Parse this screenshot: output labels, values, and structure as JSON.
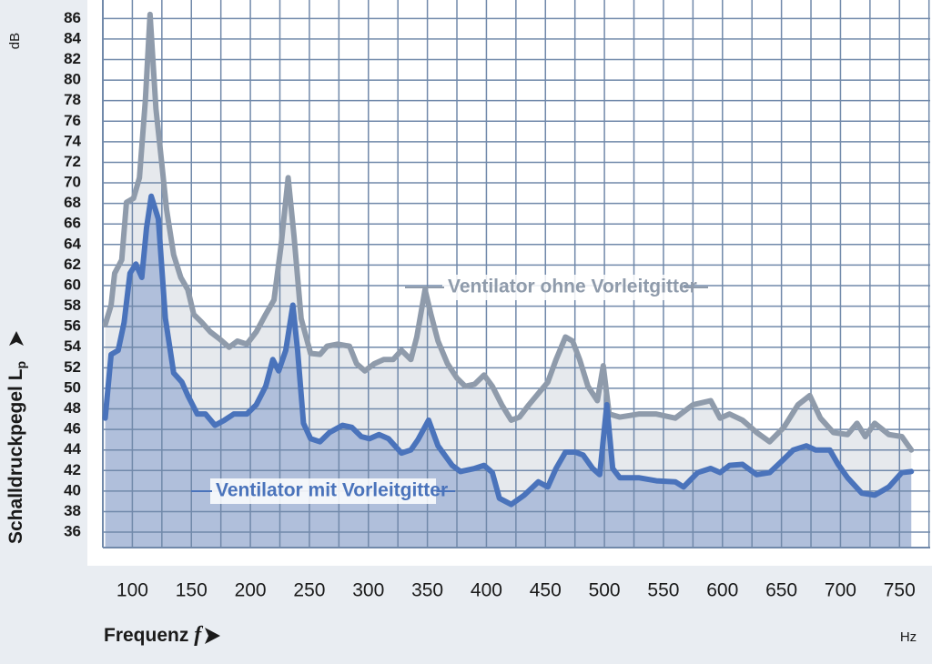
{
  "chart_data": {
    "type": "line",
    "ylabel": {
      "text": "Schalldruckpegel L",
      "subscript": "p"
    },
    "yunit": "dB",
    "xlabel": {
      "text": "Frequenz",
      "symbol": "f"
    },
    "xunit": "Hz",
    "xlim": [
      75,
      776
    ],
    "ylim": [
      34.5,
      87.8
    ],
    "xticks": [
      100,
      150,
      200,
      250,
      300,
      350,
      400,
      450,
      500,
      550,
      600,
      650,
      700,
      750
    ],
    "xminorticks": [
      125,
      175,
      225,
      275,
      325,
      375,
      425,
      475,
      525,
      575,
      625,
      675,
      725,
      775
    ],
    "yticks": [
      36,
      38,
      40,
      42,
      44,
      46,
      48,
      50,
      52,
      54,
      56,
      58,
      60,
      62,
      64,
      66,
      68,
      70,
      72,
      74,
      76,
      78,
      80,
      82,
      84,
      86
    ],
    "grid": true,
    "series": [
      {
        "name": "Ventilator ohne Vorleitgitter",
        "color": "#8f9bab",
        "x": [
          77,
          82,
          85,
          91,
          95,
          101,
          106,
          111,
          115,
          120,
          125,
          129,
          135,
          141,
          147,
          152,
          159,
          166,
          174,
          182,
          189,
          197,
          205,
          213,
          220,
          226,
          232,
          237,
          243,
          251,
          259,
          265,
          274,
          284,
          290,
          297,
          305,
          313,
          321,
          328,
          336,
          341,
          348,
          353,
          359,
          367,
          375,
          382,
          390,
          398,
          405,
          413,
          421,
          428,
          436,
          444,
          452,
          459,
          467,
          473,
          479,
          486,
          494,
          499,
          504,
          513,
          529,
          544,
          560,
          575,
          590,
          598,
          606,
          617,
          629,
          640,
          652,
          664,
          674,
          683,
          694,
          706,
          714,
          721,
          729,
          741,
          752,
          760
        ],
        "values": [
          56.2,
          58.1,
          61.2,
          62.5,
          68.1,
          68.5,
          70.5,
          78.0,
          86.4,
          77.2,
          71.8,
          67.4,
          63.0,
          60.8,
          59.6,
          57.2,
          56.4,
          55.5,
          54.8,
          54.0,
          54.6,
          54.3,
          55.5,
          57.2,
          58.6,
          63.9,
          70.5,
          64.8,
          56.8,
          53.4,
          53.3,
          54.1,
          54.3,
          54.1,
          52.4,
          51.7,
          52.4,
          52.8,
          52.8,
          53.7,
          52.8,
          55.0,
          59.6,
          57.2,
          54.6,
          52.4,
          51.0,
          50.2,
          50.4,
          51.3,
          50.2,
          48.4,
          46.9,
          47.2,
          48.4,
          49.5,
          50.6,
          52.8,
          55.0,
          54.6,
          52.8,
          50.2,
          48.8,
          52.2,
          47.5,
          47.2,
          47.5,
          47.5,
          47.1,
          48.4,
          48.8,
          47.1,
          47.5,
          46.9,
          45.7,
          44.8,
          46.2,
          48.4,
          49.3,
          47.1,
          45.7,
          45.5,
          46.6,
          45.3,
          46.6,
          45.5,
          45.3,
          44.0
        ]
      },
      {
        "name": "Ventilator mit Vorleitgitter",
        "color": "#4a73bb",
        "x": [
          77,
          82,
          88,
          93,
          98,
          103,
          108,
          112,
          116,
          122,
          128,
          135,
          142,
          147,
          155,
          162,
          170,
          178,
          186,
          197,
          205,
          213,
          219,
          224,
          230,
          236,
          240,
          245,
          251,
          259,
          267,
          278,
          286,
          294,
          301,
          309,
          317,
          328,
          336,
          342,
          351,
          359,
          371,
          378,
          390,
          398,
          405,
          411,
          421,
          432,
          444,
          452,
          459,
          467,
          475,
          482,
          490,
          496,
          502,
          507,
          513,
          529,
          544,
          560,
          567,
          579,
          590,
          598,
          606,
          617,
          629,
          640,
          652,
          660,
          671,
          679,
          691,
          698,
          706,
          718,
          729,
          741,
          752,
          760
        ],
        "values": [
          47.1,
          53.3,
          53.7,
          56.4,
          61.2,
          62.1,
          60.8,
          65.6,
          68.7,
          66.5,
          56.8,
          51.5,
          50.6,
          49.3,
          47.5,
          47.5,
          46.4,
          46.9,
          47.5,
          47.5,
          48.4,
          50.2,
          52.8,
          51.7,
          53.7,
          58.1,
          53.7,
          46.6,
          45.1,
          44.8,
          45.7,
          46.4,
          46.2,
          45.3,
          45.1,
          45.5,
          45.1,
          43.7,
          44.0,
          45.0,
          46.9,
          44.4,
          42.5,
          41.9,
          42.2,
          42.5,
          41.8,
          39.3,
          38.7,
          39.6,
          40.9,
          40.4,
          42.2,
          43.8,
          43.8,
          43.5,
          42.2,
          41.6,
          48.4,
          42.2,
          41.3,
          41.3,
          41.0,
          40.9,
          40.4,
          41.8,
          42.2,
          41.8,
          42.5,
          42.6,
          41.6,
          41.8,
          43.1,
          44.0,
          44.4,
          44.0,
          44.0,
          42.6,
          41.3,
          39.8,
          39.6,
          40.4,
          41.8,
          41.9
        ]
      }
    ]
  }
}
